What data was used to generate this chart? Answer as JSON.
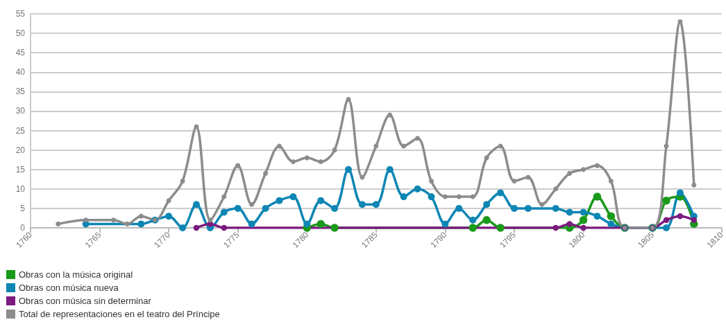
{
  "chart_data": {
    "type": "line",
    "xlim": [
      1760,
      1810
    ],
    "xticks": [
      1760,
      1765,
      1770,
      1775,
      1780,
      1785,
      1790,
      1795,
      1800,
      1805,
      1810
    ],
    "ylim": [
      0,
      55
    ],
    "yticks": [
      0,
      5,
      10,
      15,
      20,
      25,
      30,
      35,
      40,
      45,
      50,
      55
    ],
    "grid": "y",
    "legend": "bottom left",
    "marker": "circle",
    "series": [
      {
        "name": "Obras con la música original",
        "color": "#1a9a1a",
        "x": [
          1780,
          1781,
          1782,
          1792,
          1793,
          1794,
          1799,
          1800,
          1801,
          1802,
          1803,
          1805,
          1806,
          1807,
          1808
        ],
        "values": [
          0,
          1,
          0,
          0,
          2,
          0,
          0,
          2,
          8,
          3,
          0,
          0,
          7,
          8,
          1
        ]
      },
      {
        "name": "Obras con música nueva",
        "color": "#0e86b4",
        "x": [
          1764,
          1768,
          1769,
          1770,
          1771,
          1772,
          1773,
          1774,
          1775,
          1776,
          1777,
          1778,
          1779,
          1780,
          1781,
          1782,
          1783,
          1784,
          1785,
          1786,
          1787,
          1788,
          1789,
          1790,
          1791,
          1792,
          1793,
          1794,
          1795,
          1796,
          1798,
          1799,
          1800,
          1801,
          1802,
          1803,
          1805,
          1806,
          1807,
          1808
        ],
        "values": [
          1,
          1,
          2,
          3,
          0,
          6,
          0,
          4,
          5,
          1,
          5,
          7,
          8,
          1,
          7,
          5,
          15,
          6,
          6,
          15,
          8,
          10,
          8,
          1,
          5,
          2,
          6,
          9,
          5,
          5,
          5,
          4,
          4,
          3,
          1,
          0,
          0,
          0,
          9,
          3
        ]
      },
      {
        "name": "Obras con música sin determinar",
        "color": "#7b1a7f",
        "x": [
          1772,
          1773,
          1774,
          1798,
          1799,
          1800,
          1803,
          1805,
          1806,
          1807,
          1808
        ],
        "values": [
          0,
          1,
          0,
          0,
          1,
          0,
          0,
          0,
          2,
          3,
          2
        ]
      },
      {
        "name": "Total de representaciones en el teatro del Príncipe",
        "color": "#8c8c8c",
        "x": [
          1762,
          1764,
          1766,
          1767,
          1768,
          1769,
          1770,
          1771,
          1772,
          1773,
          1774,
          1775,
          1776,
          1777,
          1778,
          1779,
          1780,
          1781,
          1782,
          1783,
          1784,
          1785,
          1786,
          1787,
          1788,
          1789,
          1790,
          1791,
          1792,
          1793,
          1794,
          1795,
          1796,
          1797,
          1798,
          1799,
          1800,
          1801,
          1802,
          1803,
          1805,
          1806,
          1807,
          1808
        ],
        "values": [
          1,
          2,
          2,
          1,
          3,
          2,
          7,
          12,
          26,
          2,
          8,
          16,
          6,
          14,
          21,
          17,
          18,
          17,
          20,
          33,
          13,
          21,
          29,
          21,
          23,
          12,
          8,
          8,
          8,
          18,
          21,
          12,
          13,
          6,
          10,
          14,
          15,
          16,
          12,
          0,
          0,
          21,
          53,
          11
        ]
      }
    ]
  }
}
